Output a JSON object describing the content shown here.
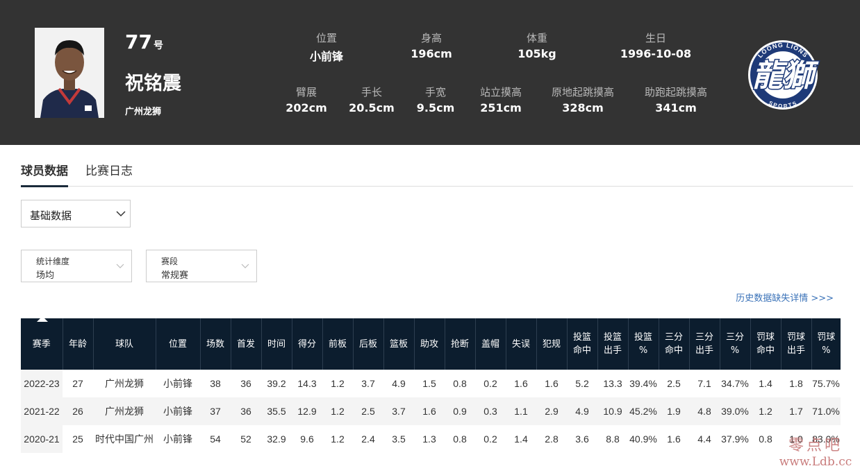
{
  "player": {
    "number": "77",
    "number_suffix": "号",
    "name": "祝铭震",
    "team": "广州龙狮"
  },
  "attributes_row1": [
    {
      "label": "位置",
      "value": "小前锋"
    },
    {
      "label": "身高",
      "value": "196cm"
    },
    {
      "label": "体重",
      "value": "105kg"
    },
    {
      "label": "生日",
      "value": "1996-10-08"
    }
  ],
  "attributes_row2": [
    {
      "label": "臂展",
      "value": "202cm"
    },
    {
      "label": "手长",
      "value": "20.5cm"
    },
    {
      "label": "手宽",
      "value": "9.5cm"
    },
    {
      "label": "站立摸高",
      "value": "251cm"
    },
    {
      "label": "原地起跳摸高",
      "value": "328cm"
    },
    {
      "label": "助跑起跳摸高",
      "value": "341cm"
    }
  ],
  "logo": {
    "main_text": "龍獅",
    "ring_top": "LOONG LIONS",
    "ring_bottom": "SPORTS"
  },
  "tabs": [
    "球员数据",
    "比赛日志"
  ],
  "stat_type": "基础数据",
  "filters": [
    {
      "label": "统计维度",
      "value": "场均"
    },
    {
      "label": "赛段",
      "value": "常规赛"
    }
  ],
  "history_link": "历史数据缺失详情 >>>",
  "table": {
    "headers": [
      "赛季",
      "年龄",
      "球队",
      "位置",
      "场数",
      "首发",
      "时间",
      "得分",
      "前板",
      "后板",
      "篮板",
      "助攻",
      "抢断",
      "盖帽",
      "失误",
      "犯规",
      "投篮|命中",
      "投篮|出手",
      "投篮|%",
      "三分|命中",
      "三分|出手",
      "三分|%",
      "罚球|命中",
      "罚球|出手",
      "罚球|%"
    ],
    "rows": [
      [
        "2022-23",
        "27",
        "广州龙狮",
        "小前锋",
        "38",
        "36",
        "39.2",
        "14.3",
        "1.2",
        "3.7",
        "4.9",
        "1.5",
        "0.8",
        "0.2",
        "1.6",
        "1.6",
        "5.2",
        "13.3",
        "39.4%",
        "2.5",
        "7.1",
        "34.7%",
        "1.4",
        "1.8",
        "75.7%"
      ],
      [
        "2021-22",
        "26",
        "广州龙狮",
        "小前锋",
        "37",
        "36",
        "35.5",
        "12.9",
        "1.2",
        "2.5",
        "3.7",
        "1.6",
        "0.9",
        "0.3",
        "1.1",
        "2.9",
        "4.9",
        "10.9",
        "45.2%",
        "1.9",
        "4.8",
        "39.0%",
        "1.2",
        "1.7",
        "71.0%"
      ],
      [
        "2020-21",
        "25",
        "时代中国广州",
        "小前锋",
        "54",
        "52",
        "32.9",
        "9.6",
        "1.2",
        "2.4",
        "3.5",
        "1.3",
        "0.8",
        "0.2",
        "1.4",
        "2.8",
        "3.6",
        "8.8",
        "40.9%",
        "1.6",
        "4.4",
        "37.9%",
        "0.8",
        "1.0",
        "83.0%"
      ]
    ]
  },
  "watermark": {
    "line1": "零点吧",
    "line2": "www.Ldb.cc"
  },
  "colors": {
    "header_bg": "#333333",
    "table_header_bg": "#0c1d2e",
    "link": "#3a72b8",
    "logo_blue": "#1e3a78"
  }
}
